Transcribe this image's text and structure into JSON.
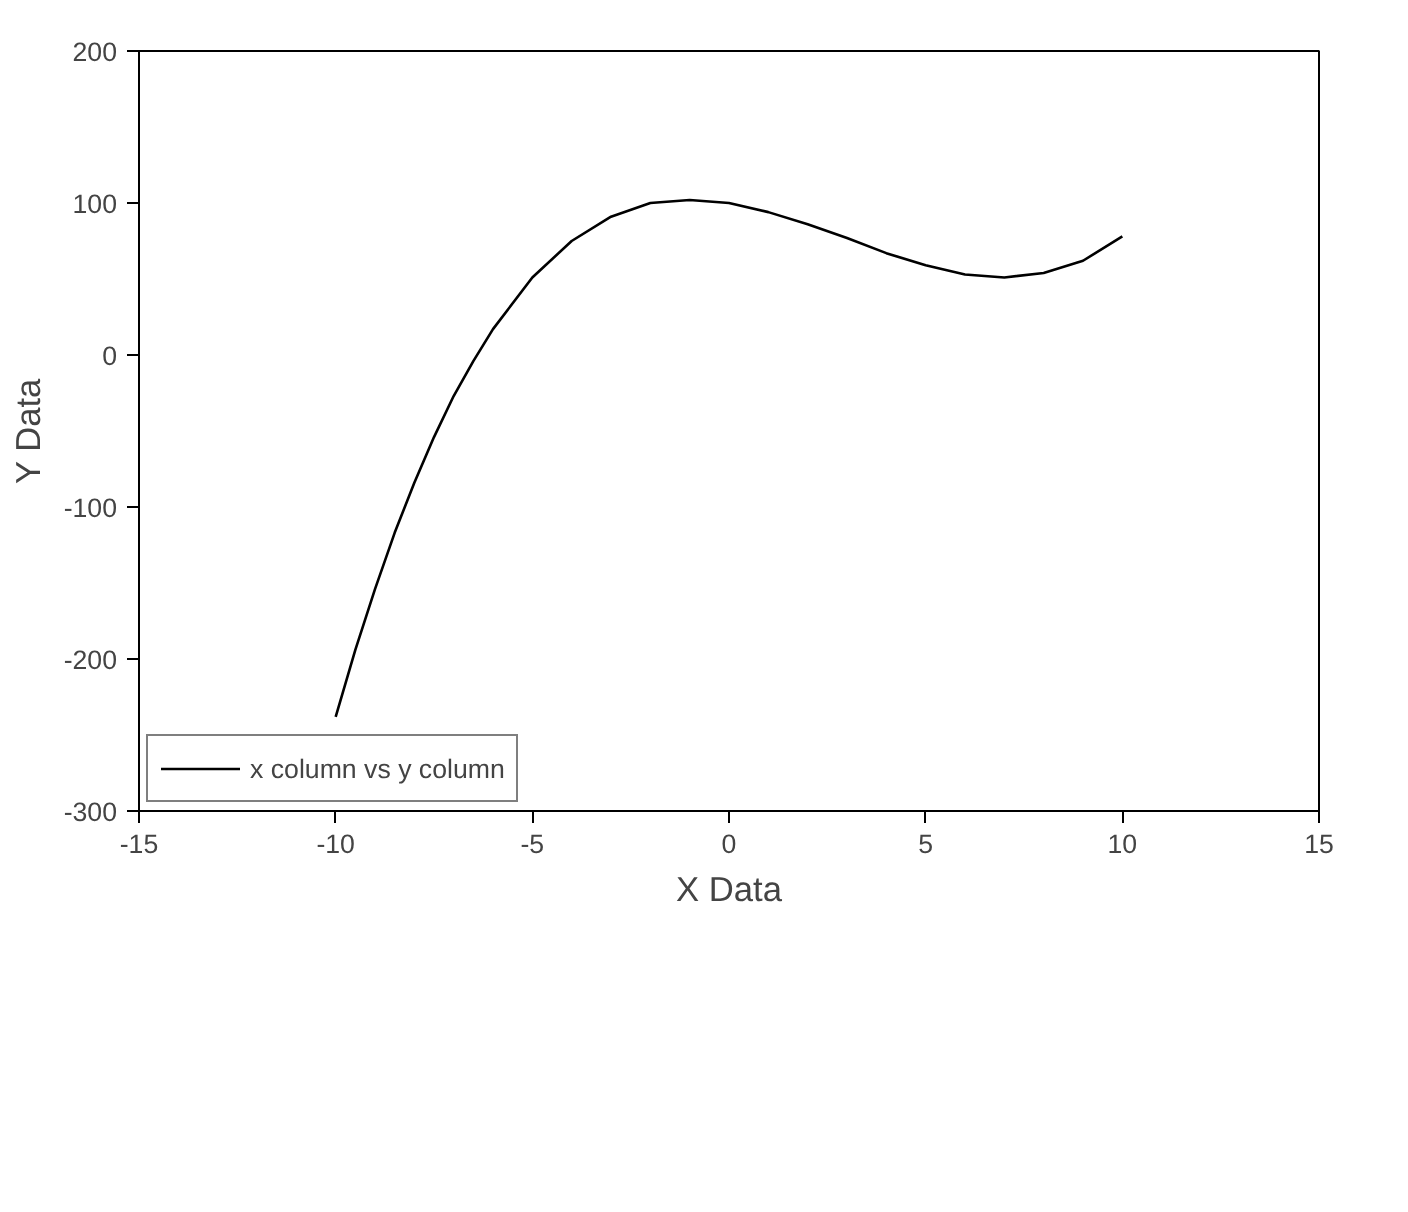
{
  "chart_data": {
    "type": "line",
    "xlabel": "X Data",
    "ylabel": "Y Data",
    "xlim": [
      -15,
      15
    ],
    "xticks": [
      -15,
      -10,
      -5,
      0,
      5,
      10,
      15
    ],
    "ylim": [
      -300,
      200
    ],
    "yticks": [
      -300,
      -200,
      -100,
      0,
      100,
      200
    ],
    "grid": false,
    "legend": "bottom left",
    "series": [
      {
        "name": "x column vs y column",
        "color": "#000000",
        "x": [
          -10,
          -9.5,
          -9,
          -8.5,
          -8,
          -7.5,
          -7,
          -6.5,
          -6,
          -5,
          -4,
          -3,
          -2,
          -1,
          0,
          1,
          2,
          3,
          4,
          5,
          6,
          7,
          8,
          9,
          10
        ],
        "values": [
          -238,
          -194,
          -154,
          -117,
          -84,
          -54,
          -27,
          -4,
          17,
          51,
          75,
          91,
          100,
          102,
          100,
          94,
          86,
          77,
          67,
          59,
          53,
          51,
          54,
          62,
          78
        ]
      }
    ]
  }
}
